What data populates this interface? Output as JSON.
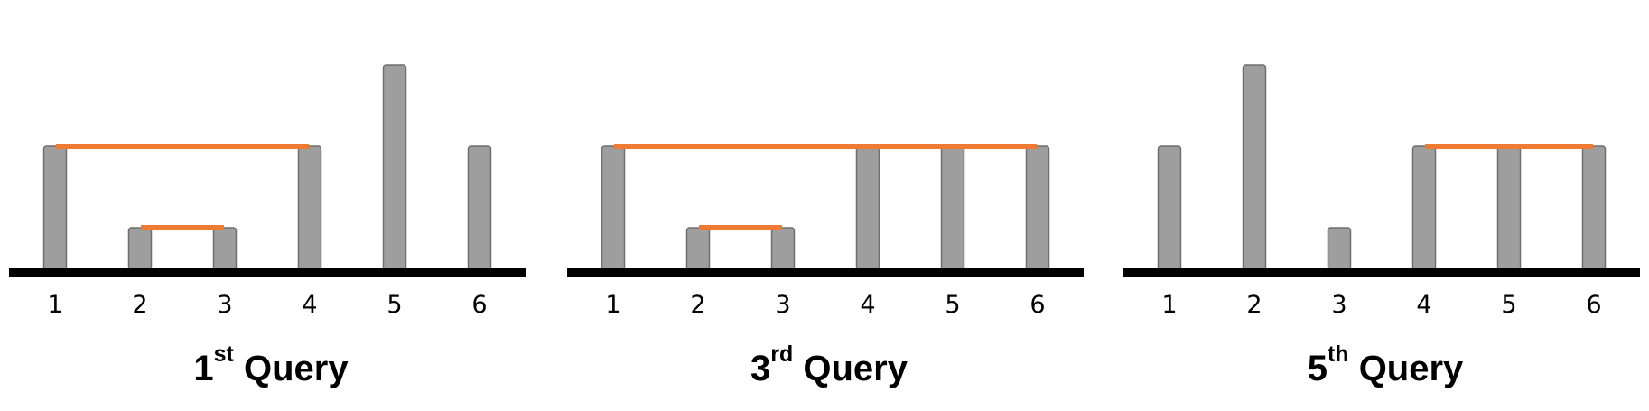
{
  "panels": [
    {
      "title": {
        "num": "1",
        "suffix": "st",
        "word": "Query"
      },
      "positions": [
        "1",
        "2",
        "3",
        "4",
        "5",
        "6"
      ],
      "heights": [
        3,
        1,
        1,
        3,
        5,
        3
      ],
      "shown": [
        true,
        true,
        true,
        true,
        true,
        true
      ],
      "segments": [
        {
          "from": 1,
          "to": 4,
          "level": 3
        },
        {
          "from": 2,
          "to": 3,
          "level": 1
        }
      ]
    },
    {
      "title": {
        "num": "3",
        "suffix": "rd",
        "word": "Query"
      },
      "positions": [
        "1",
        "2",
        "3",
        "4",
        "5",
        "6"
      ],
      "heights": [
        3,
        1,
        1,
        3,
        3,
        3
      ],
      "shown": [
        true,
        true,
        true,
        true,
        true,
        true
      ],
      "segments": [
        {
          "from": 1,
          "to": 6,
          "level": 3
        },
        {
          "from": 2,
          "to": 3,
          "level": 1
        }
      ]
    },
    {
      "title": {
        "num": "5",
        "suffix": "th",
        "word": "Query"
      },
      "positions": [
        "1",
        "2",
        "3",
        "4",
        "5",
        "6"
      ],
      "heights": [
        3,
        5,
        1,
        3,
        3,
        3
      ],
      "shown": [
        true,
        true,
        true,
        true,
        true,
        true
      ],
      "segments": [
        {
          "from": 4,
          "to": 6,
          "level": 3
        }
      ]
    }
  ],
  "colors": {
    "bar": "#9e9e9e",
    "bar_stroke": "#6f6f6f",
    "segment": "#ef7b32",
    "baseline": "#000000"
  }
}
